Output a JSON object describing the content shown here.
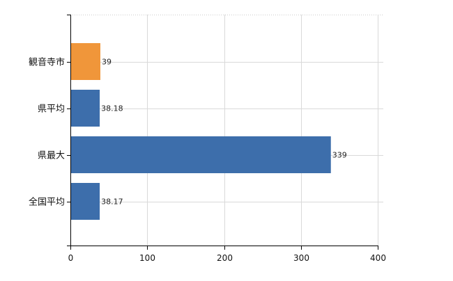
{
  "chart_data": {
    "type": "bar",
    "orientation": "horizontal",
    "categories": [
      "観音寺市",
      "県平均",
      "県最大",
      "全国平均"
    ],
    "values": [
      39,
      38.18,
      339,
      38.17
    ],
    "value_labels": [
      "39",
      "38.18",
      "339",
      "38.17"
    ],
    "colors": [
      "#f0963a",
      "#3d6eab",
      "#3d6eab",
      "#3d6eab"
    ],
    "title": "",
    "xlabel": "",
    "ylabel": "",
    "xlim": [
      0,
      400
    ],
    "xticks": [
      0,
      100,
      200,
      300,
      400
    ],
    "xtick_labels": [
      "0",
      "100",
      "200",
      "300",
      "400"
    ],
    "grid": true
  }
}
